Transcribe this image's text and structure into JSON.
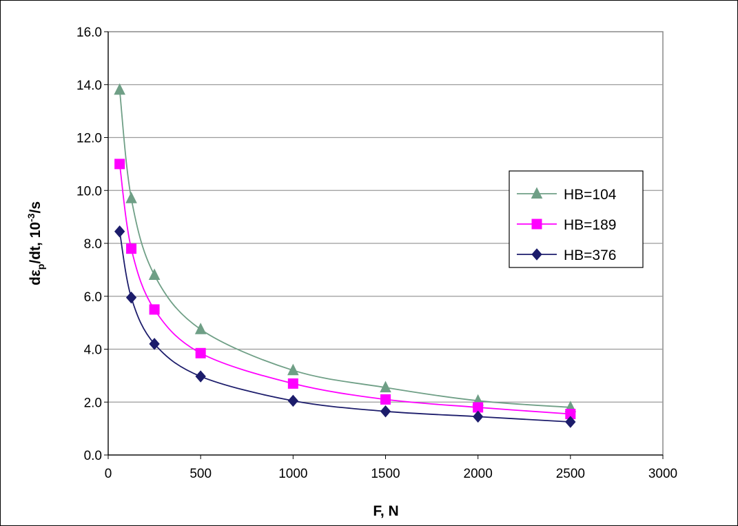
{
  "chart_data": {
    "type": "line",
    "xlabel": "F, N",
    "ylabel": {
      "main": "dε",
      "sub": "p",
      "after": "/dt, 10",
      "sup": "-3",
      "end": "/s"
    },
    "xlim": [
      0,
      3000
    ],
    "ylim": [
      0,
      16
    ],
    "xticks": [
      0,
      500,
      1000,
      1500,
      2000,
      2500,
      3000
    ],
    "yticks": [
      "0.0",
      "2.0",
      "4.0",
      "6.0",
      "8.0",
      "10.0",
      "12.0",
      "14.0",
      "16.0"
    ],
    "grid": "horizontal",
    "legend_position": "right",
    "series": [
      {
        "name": "HB=104",
        "color": "#6f9f86",
        "marker": "triangle",
        "points": [
          [
            62,
            13.8
          ],
          [
            125,
            9.7
          ],
          [
            250,
            6.8
          ],
          [
            500,
            4.75
          ],
          [
            1000,
            3.2
          ],
          [
            1500,
            2.55
          ],
          [
            2000,
            2.05
          ],
          [
            2500,
            1.8
          ]
        ]
      },
      {
        "name": "HB=189",
        "color": "#ff00ff",
        "marker": "square",
        "points": [
          [
            62,
            11.0
          ],
          [
            125,
            7.8
          ],
          [
            250,
            5.5
          ],
          [
            500,
            3.85
          ],
          [
            1000,
            2.7
          ],
          [
            1500,
            2.1
          ],
          [
            2000,
            1.8
          ],
          [
            2500,
            1.55
          ]
        ]
      },
      {
        "name": "HB=376",
        "color": "#1c1c6b",
        "marker": "diamond",
        "points": [
          [
            62,
            8.45
          ],
          [
            125,
            5.95
          ],
          [
            250,
            4.2
          ],
          [
            500,
            2.97
          ],
          [
            1000,
            2.05
          ],
          [
            1500,
            1.65
          ],
          [
            2000,
            1.45
          ],
          [
            2500,
            1.25
          ]
        ]
      }
    ]
  }
}
